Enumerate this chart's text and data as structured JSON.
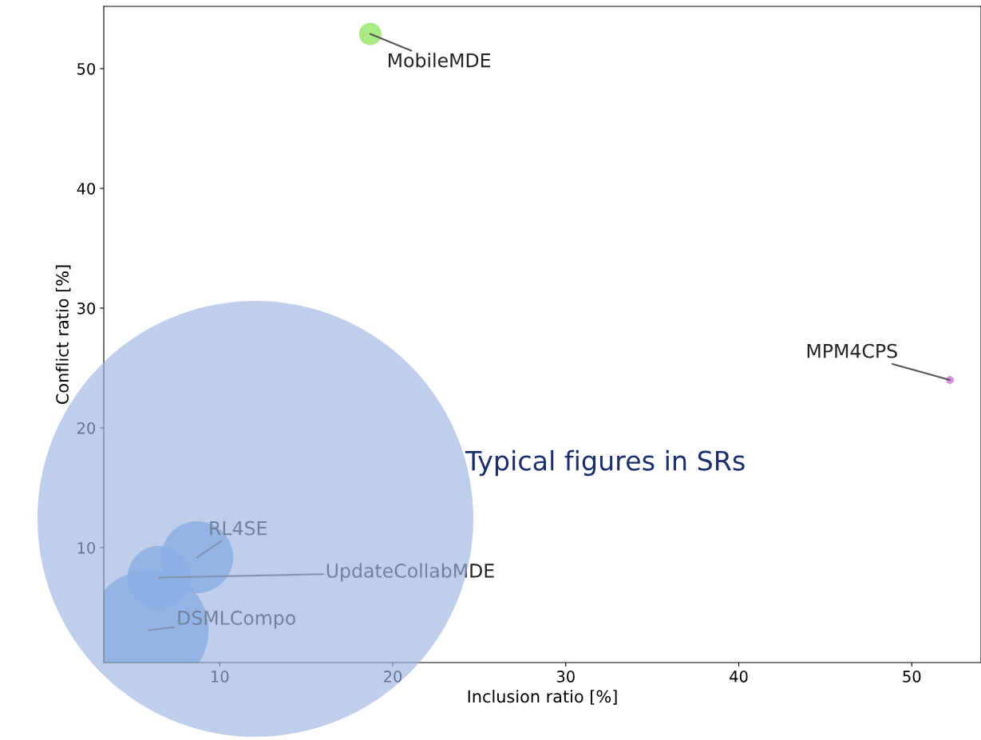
{
  "chart_data": {
    "type": "bubble",
    "xlabel": "Inclusion ratio [%]",
    "ylabel": "Conflict ratio [%]",
    "x": [
      18.7,
      52.2,
      8.7,
      6.5,
      5.9
    ],
    "values": [
      52.9,
      24.0,
      9.2,
      7.5,
      3.1
    ],
    "sizes": [
      0.035,
      0.0044,
      0.36,
      0.28,
      1
    ],
    "colors": [
      "#9be66c",
      "#d27ae6",
      "#6aa8e8",
      "#6aa8e8",
      "#6aa8e8"
    ],
    "xlim": [
      3.3,
      54
    ],
    "ylim": [
      0.4,
      55.2
    ],
    "xticks": [
      10,
      20,
      30,
      40,
      50
    ],
    "yticks": [
      10,
      20,
      30,
      40,
      50
    ],
    "grid": false,
    "legend": false,
    "annotations": [
      {
        "text": "MobileMDE",
        "x": 18.7,
        "y": 52.9
      },
      {
        "text": "MPM4CPS",
        "x": 52.2,
        "y": 24.0
      },
      {
        "text": "RL4SE",
        "x": 8.7,
        "y": 9.2
      },
      {
        "text": "UpdateCollabMDE",
        "x": 6.5,
        "y": 7.5
      },
      {
        "text": "DSMLCompo",
        "x": 5.9,
        "y": 3.1
      },
      "Typical figures in SRs"
    ]
  }
}
